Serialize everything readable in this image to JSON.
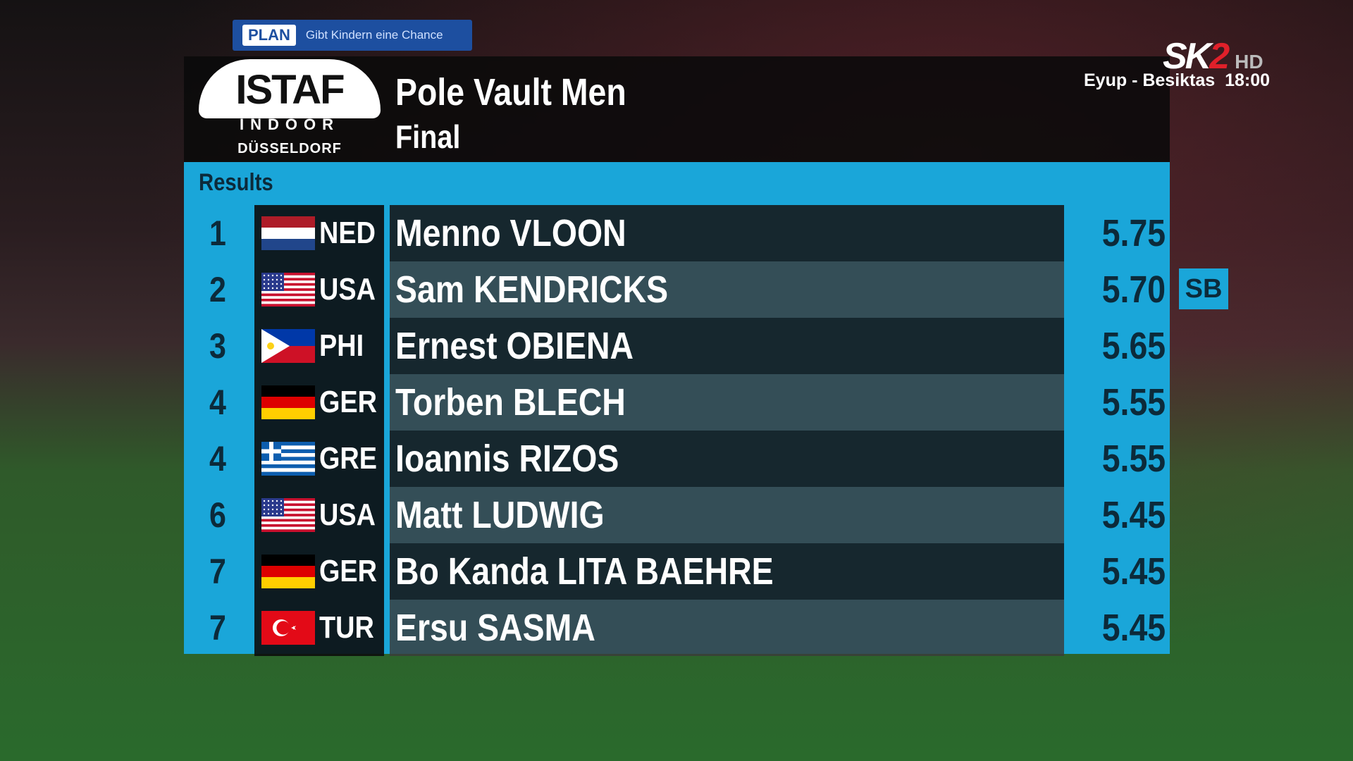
{
  "banner": {
    "brand": "PLAN",
    "slogan": "Gibt Kindern eine Chance"
  },
  "channel": {
    "logo": "SK",
    "number": "2",
    "quality": "HD",
    "next_program": "Eyup - Besiktas",
    "next_time": "18:00"
  },
  "event": {
    "logo": {
      "name": "ISTAF",
      "line2": "INDOOR",
      "city": "DÜSSELDORF"
    },
    "title": "Pole Vault Men",
    "round": "Final"
  },
  "results": {
    "heading": "Results",
    "rows": [
      {
        "rank": "1",
        "country": "NED",
        "athlete": "Menno VLOON",
        "mark": "5.75"
      },
      {
        "rank": "2",
        "country": "USA",
        "athlete": "Sam KENDRICKS",
        "mark": "5.70",
        "note": "SB"
      },
      {
        "rank": "3",
        "country": "PHI",
        "athlete": "Ernest OBIENA",
        "mark": "5.65"
      },
      {
        "rank": "4",
        "country": "GER",
        "athlete": "Torben BLECH",
        "mark": "5.55"
      },
      {
        "rank": "4",
        "country": "GRE",
        "athlete": "Ioannis RIZOS",
        "mark": "5.55"
      },
      {
        "rank": "6",
        "country": "USA",
        "athlete": "Matt LUDWIG",
        "mark": "5.45"
      },
      {
        "rank": "7",
        "country": "GER",
        "athlete": "Bo Kanda LITA BAEHRE",
        "mark": "5.45"
      },
      {
        "rank": "7",
        "country": "TUR",
        "athlete": "Ersu SASMA",
        "mark": "5.45"
      }
    ]
  }
}
